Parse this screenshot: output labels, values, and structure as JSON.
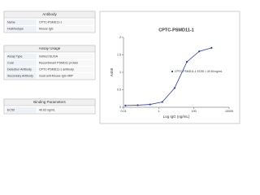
{
  "panels": [
    {
      "title": "Antibody",
      "rows": [
        [
          "Name",
          "CPTC-PSMD11-1"
        ],
        [
          "Host/Isotype",
          "Mouse IgG"
        ]
      ]
    },
    {
      "title": "Assay Usage",
      "rows": [
        [
          "Assay Type",
          "Indirect ELISA"
        ],
        [
          "Coat",
          "Recombinant PSMD11 protein"
        ],
        [
          "Detection Antibody",
          "CPTC-PSMD11-1 antibody"
        ],
        [
          "Secondary Antibody",
          "Goat anti-Mouse IgG HRP"
        ]
      ]
    },
    {
      "title": "Binding Parameters",
      "rows": [
        [
          "EC50",
          "40.63 ng/mL"
        ]
      ]
    }
  ],
  "chart_data": {
    "type": "line",
    "title": "CPTC-PSMD11-1",
    "x_label": "Log IgG (ng/mL)",
    "y_label": "A450",
    "x": [
      0.0128,
      0.064,
      0.32,
      1.6,
      8,
      40,
      200,
      1000
    ],
    "series": [
      {
        "name": "CPTC-PSMD11-1 EC50 = 40.63 ng/mL",
        "color": "#2b3fbf",
        "values": [
          0.05,
          0.06,
          0.08,
          0.15,
          0.55,
          1.3,
          1.6,
          1.7
        ]
      }
    ],
    "xlim": [
      0.01,
      10000
    ],
    "xticks": [
      0.01,
      1,
      100,
      10000
    ],
    "xscale": "log",
    "ylim": [
      0,
      2
    ],
    "yticks": [
      0,
      0.5,
      1,
      1.5,
      2
    ]
  }
}
